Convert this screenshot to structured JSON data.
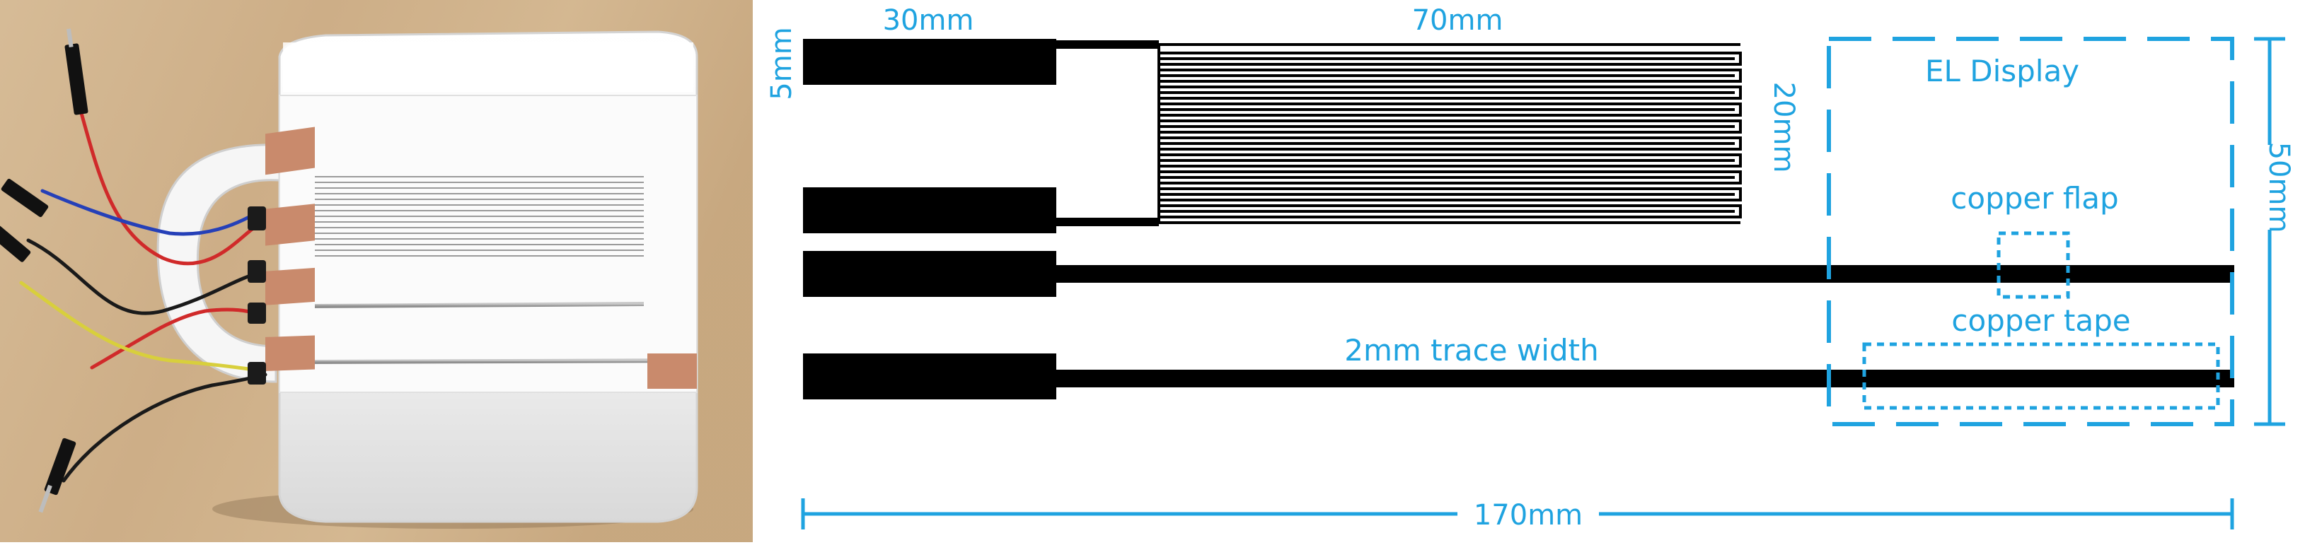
{
  "colors": {
    "accent": "#1fa3e0",
    "ink": "#000000",
    "copper": "#c98a6c",
    "table_wood": "#cdb08a",
    "mug_white": "#f4f4f4"
  },
  "photo": {
    "subject": "white mug with printed electrode traces and jumper wires"
  },
  "labels": {
    "dim_30mm": "30mm",
    "dim_70mm": "70mm",
    "dim_5mm": "5mm",
    "dim_20mm": "20mm",
    "dim_50mm": "50mm",
    "dim_170mm": "170mm",
    "el_display": "EL Display",
    "copper_flap": "copper flap",
    "copper_tape": "copper tape",
    "trace_width": "2mm trace width"
  },
  "icons": {
    "wire_pin": "jumper-pin-icon"
  }
}
